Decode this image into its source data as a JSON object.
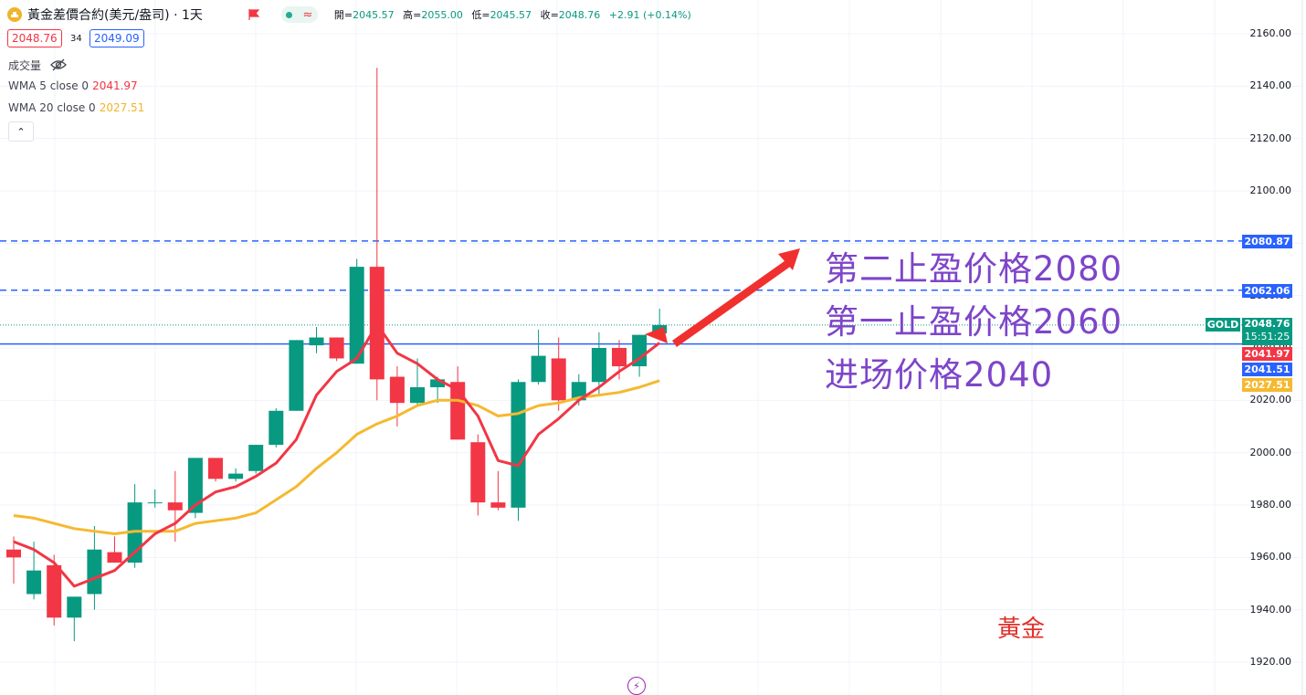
{
  "header": {
    "title": "黃金差價合約(美元/盎司) · 1天",
    "open_label": "開",
    "open": "2045.57",
    "high_label": "高",
    "high": "2055.00",
    "low_label": "低",
    "low": "2045.57",
    "close_label": "收",
    "close": "2048.76",
    "change": "+2.91 (+0.14%)",
    "wave_glyph": "≈"
  },
  "trade": {
    "sell": "2048.76",
    "spread": "34",
    "buy": "2049.09"
  },
  "indicators": {
    "volume_label": "成交量",
    "wma5_label": "WMA 5 close 0",
    "wma5_value": "2041.97",
    "wma20_label": "WMA 20 close 0",
    "wma20_value": "2027.51",
    "collapse_glyph": "⌃"
  },
  "annotations": {
    "tp2": "第二止盈价格2080",
    "tp1": "第一止盈价格2060",
    "entry": "进场价格2040",
    "watermark": "黃金"
  },
  "price_tags": {
    "symbol": "GOLD",
    "last": "2048.76",
    "countdown": "15:51:25",
    "tp2": "2080.87",
    "tp1": "2062.06",
    "wma5": "2041.97",
    "entry": "2041.51",
    "wma20": "2027.51"
  },
  "colors": {
    "up": "#089981",
    "down": "#f23645",
    "wma5": "#f23645",
    "wma20": "#f5b930",
    "levels": "#2962ff",
    "annotation": "#7d45c9"
  },
  "chart_data": {
    "type": "candlestick",
    "y_axis_ticks": [
      "1920.00",
      "1940.00",
      "1960.00",
      "1980.00",
      "2000.00",
      "2020.00",
      "2040.00",
      "2060.00",
      "2080.00",
      "2100.00",
      "2120.00",
      "2140.00",
      "2160.00"
    ],
    "ylim": [
      1915,
      2163
    ],
    "horizontal_lines": [
      {
        "name": "tp2",
        "value": 2080.87,
        "style": "dashed"
      },
      {
        "name": "tp1",
        "value": 2062.06,
        "style": "dashed"
      },
      {
        "name": "entry",
        "value": 2041.51,
        "style": "solid"
      }
    ],
    "candles": [
      {
        "o": 1963,
        "h": 1968,
        "l": 1950,
        "c": 1960
      },
      {
        "o": 1946,
        "h": 1966,
        "l": 1944,
        "c": 1955
      },
      {
        "o": 1957,
        "h": 1961,
        "l": 1934,
        "c": 1937
      },
      {
        "o": 1937,
        "h": 1944,
        "l": 1928,
        "c": 1945
      },
      {
        "o": 1946,
        "h": 1972,
        "l": 1940,
        "c": 1963
      },
      {
        "o": 1962,
        "h": 1968,
        "l": 1958,
        "c": 1958
      },
      {
        "o": 1958,
        "h": 1988,
        "l": 1956,
        "c": 1981
      },
      {
        "o": 1981,
        "h": 1986,
        "l": 1979,
        "c": 1981
      },
      {
        "o": 1981,
        "h": 1993,
        "l": 1966,
        "c": 1978
      },
      {
        "o": 1977,
        "h": 1998,
        "l": 1975,
        "c": 1998
      },
      {
        "o": 1998,
        "h": 1996,
        "l": 1989,
        "c": 1990
      },
      {
        "o": 1990,
        "h": 1994,
        "l": 1989,
        "c": 1992
      },
      {
        "o": 1993,
        "h": 2003,
        "l": 1992,
        "c": 2003
      },
      {
        "o": 2003,
        "h": 2017,
        "l": 2002,
        "c": 2016
      },
      {
        "o": 2016,
        "h": 2043,
        "l": 2016,
        "c": 2043
      },
      {
        "o": 2041,
        "h": 2048,
        "l": 2038,
        "c": 2044
      },
      {
        "o": 2044,
        "h": 2044,
        "l": 2035,
        "c": 2036
      },
      {
        "o": 2034,
        "h": 2074,
        "l": 2034,
        "c": 2071
      },
      {
        "o": 2071,
        "h": 2147,
        "l": 2020,
        "c": 2028
      },
      {
        "o": 2029,
        "h": 2033,
        "l": 2010,
        "c": 2019
      },
      {
        "o": 2019,
        "h": 2036,
        "l": 2018,
        "c": 2025
      },
      {
        "o": 2025,
        "h": 2029,
        "l": 2019,
        "c": 2028
      },
      {
        "o": 2027,
        "h": 2033,
        "l": 2005,
        "c": 2005
      },
      {
        "o": 2004,
        "h": 2007,
        "l": 1976,
        "c": 1981
      },
      {
        "o": 1981,
        "h": 1993,
        "l": 1978,
        "c": 1979
      },
      {
        "o": 1979,
        "h": 2028,
        "l": 1974,
        "c": 2027
      },
      {
        "o": 2027,
        "h": 2047,
        "l": 2026,
        "c": 2037
      },
      {
        "o": 2036,
        "h": 2044,
        "l": 2016,
        "c": 2020
      },
      {
        "o": 2020,
        "h": 2030,
        "l": 2018,
        "c": 2027
      },
      {
        "o": 2027,
        "h": 2046,
        "l": 2022,
        "c": 2040
      },
      {
        "o": 2040,
        "h": 2043,
        "l": 2028,
        "c": 2033
      },
      {
        "o": 2033,
        "h": 2045,
        "l": 2029,
        "c": 2045
      },
      {
        "o": 2045.57,
        "h": 2055,
        "l": 2045.57,
        "c": 2048.76
      }
    ],
    "wma5": [
      1966,
      1963,
      1958,
      1949,
      1952,
      1955,
      1962,
      1969,
      1973,
      1980,
      1985,
      1987,
      1991,
      1996,
      2005,
      2022,
      2031,
      2036,
      2049,
      2038,
      2034,
      2028,
      2024,
      2014,
      1997,
      1995,
      2007,
      2013,
      2020,
      2025,
      2031,
      2036,
      2041.97
    ],
    "wma20": [
      1976,
      1975,
      1973,
      1971,
      1970,
      1969,
      1970,
      1970,
      1970,
      1973,
      1974,
      1975,
      1977,
      1982,
      1987,
      1994,
      2000,
      2007,
      2011,
      2014,
      2018,
      2020,
      2020,
      2018,
      2014,
      2015,
      2018,
      2019,
      2021,
      2022,
      2023,
      2025,
      2027.51
    ]
  }
}
